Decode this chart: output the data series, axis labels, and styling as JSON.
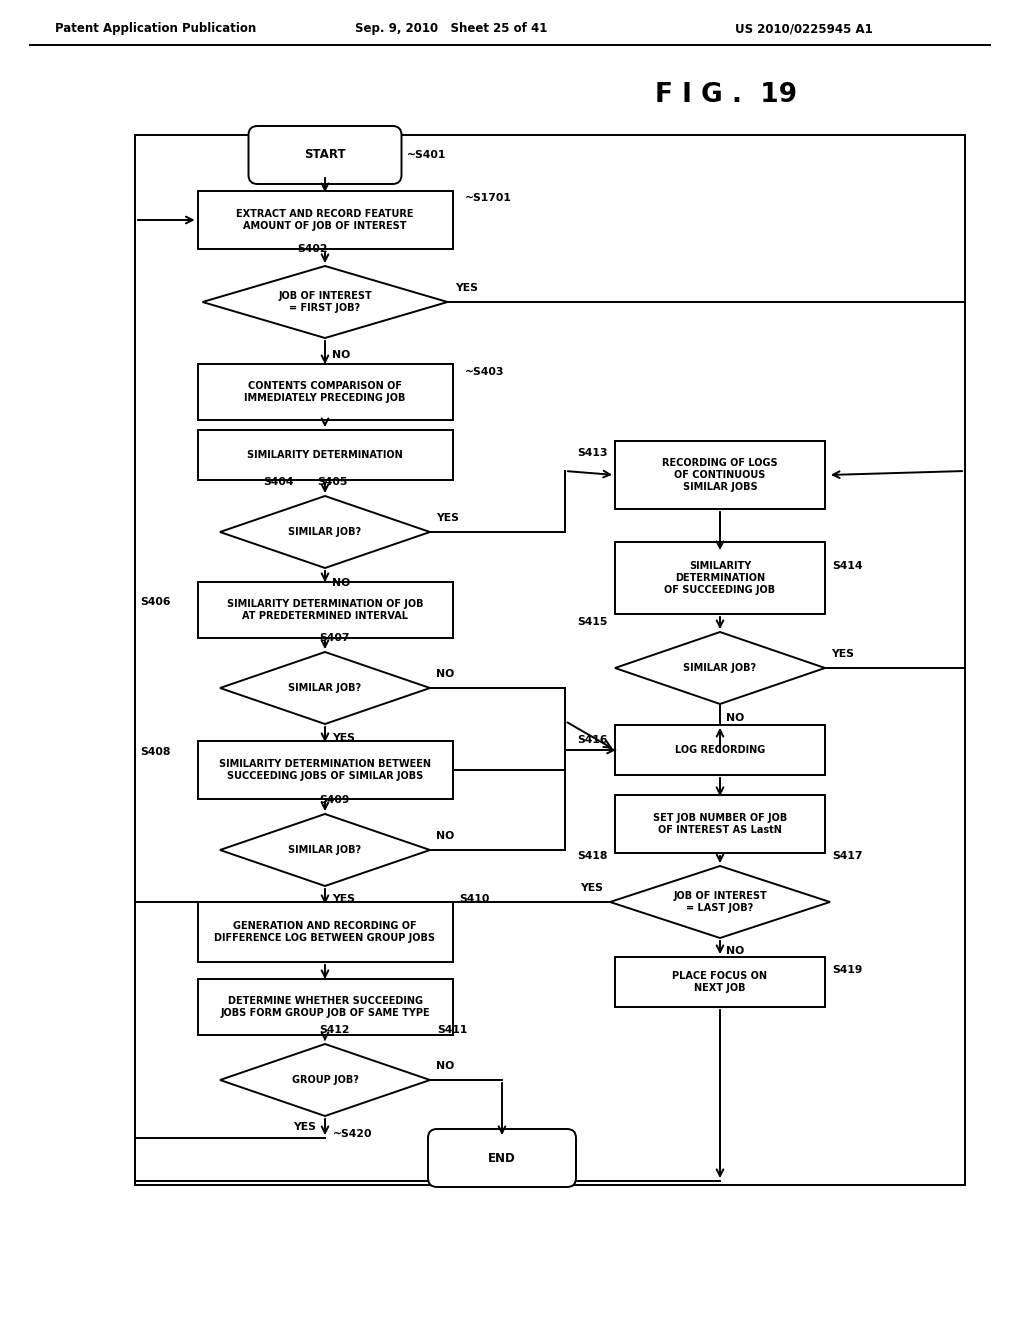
{
  "header_left": "Patent Application Publication",
  "header_mid": "Sep. 9, 2010   Sheet 25 of 41",
  "header_right": "US 2010/0225945 A1",
  "fig_title": "F I G .  19",
  "bg_color": "#ffffff",
  "lw": 1.4
}
